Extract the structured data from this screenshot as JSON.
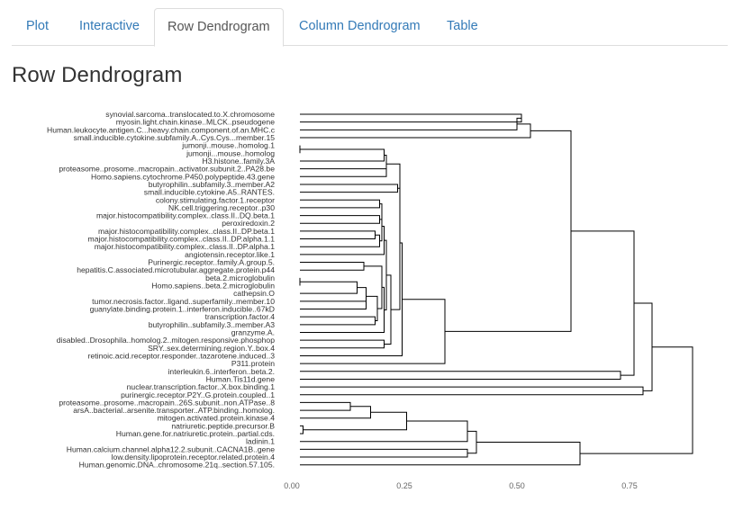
{
  "tabs": [
    {
      "label": "Plot",
      "active": false
    },
    {
      "label": "Interactive",
      "active": false
    },
    {
      "label": "Row Dendrogram",
      "active": true
    },
    {
      "label": "Column Dendrogram",
      "active": false
    },
    {
      "label": "Table",
      "active": false
    }
  ],
  "page_title": "Row Dendrogram",
  "colors": {
    "link": "#337ab7",
    "line": "#000000",
    "text": "#333333"
  },
  "chart_data": {
    "type": "dendrogram",
    "orientation": "horizontal",
    "labels": [
      "synovial.sarcoma..translocated.to.X.chromosome",
      "myosin.light.chain.kinase..MLCK..pseudogene",
      "Human.leukocyte.antigen.C...heavy.chain.component.of.an.MHC.c",
      "small.inducible.cytokine.subfamily.A..Cys.Cys...member.15",
      "jumonji..mouse..homolog.1",
      "jumonji...mouse..homolog",
      "H3.histone..family.3A",
      "proteasome..prosome..macropain..activator.subunit.2..PA28.be",
      "Homo.sapiens.cytochrome.P450.polypeptide.43.gene",
      "butyrophilin..subfamily.3..member.A2",
      "small.inducible.cytokine.A5..RANTES.",
      "colony.stimulating.factor.1.receptor",
      "NK.cell.triggering.receptor..p30",
      "major.histocompatibility.complex..class.II..DQ.beta.1",
      "peroxiredoxin.2",
      "major.histocompatibility.complex..class.II..DP.beta.1",
      "major.histocompatibility.complex..class.II..DP.alpha.1.1",
      "major.histocompatibility.complex..class.II..DP.alpha.1",
      "angiotensin.receptor.like.1",
      "Purinergic.receptor..family.A.group.5.",
      "hepatitis.C.associated.microtubular.aggregate.protein.p44",
      "beta.2.microglobulin",
      "Homo.sapiens..beta.2.microglobulin",
      "cathepsin.O",
      "tumor.necrosis.factor..ligand..superfamily..member.10",
      "guanylate.binding.protein.1..interferon.inducible..67kD",
      "transcription.factor.4",
      "butyrophilin..subfamily.3..member.A3",
      "granzyme.A.",
      "disabled..Drosophila..homolog.2..mitogen.responsive.phosphop",
      "SRY..sex.determining.region.Y..box.4",
      "retinoic.acid.receptor.responder..tazarotene.induced..3",
      "P311.protein",
      "interleukin.6..interferon..beta.2.",
      "Human.Tis11d.gene",
      "nuclear.transcription.factor..X.box.binding.1",
      "purinergic.receptor.P2Y..G.protein.coupled..1",
      "proteasome..prosome..macropain..26S.subunit..non.ATPase..8",
      "arsA..bacterial..arsenite.transporter..ATP.binding..homolog.",
      "mitogen.activated.protein.kinase.4",
      "natriuretic.peptide.precursor.B",
      "Human.gene.for.natriuretic.protein..partial.cds.",
      "ladinin.1",
      "Human.calcium.channel.alpha12.2.subunit..CACNA1B..gene",
      "low.density.lipoprotein.receptor.related.protein.4",
      "Human.genomic.DNA..chromosome.21q..section.57.105."
    ],
    "merges": [
      {
        "a": 0,
        "b": 1,
        "h": 0.51
      },
      {
        "a": 2,
        "b": "m0",
        "h": 0.5
      },
      {
        "a": 3,
        "b": "m1",
        "h": 0.53
      },
      {
        "a": 4,
        "b": 5,
        "h": 0.001
      },
      {
        "a": "m3",
        "b": 6,
        "h": 0.205
      },
      {
        "a": 7,
        "b": 8,
        "h": 0.21
      },
      {
        "a": "m4",
        "b": "m5",
        "h": 0.21
      },
      {
        "a": 9,
        "b": 10,
        "h": 0.235
      },
      {
        "a": "m6",
        "b": "m7",
        "h": 0.24
      },
      {
        "a": 11,
        "b": 12,
        "h": 0.195
      },
      {
        "a": 13,
        "b": 14,
        "h": 0.195
      },
      {
        "a": "m9",
        "b": "m10",
        "h": 0.2
      },
      {
        "a": 15,
        "b": 16,
        "h": 0.185
      },
      {
        "a": "m12",
        "b": 17,
        "h": 0.195
      },
      {
        "a": "m11",
        "b": "m13",
        "h": 0.2
      },
      {
        "a": 18,
        "b": "m14",
        "h": 0.205
      },
      {
        "a": 19,
        "b": 20,
        "h": 0.16
      },
      {
        "a": 21,
        "b": 22,
        "h": 0.001
      },
      {
        "a": "m17",
        "b": 23,
        "h": 0.145
      },
      {
        "a": 24,
        "b": 25,
        "h": 0.165
      },
      {
        "a": "m18",
        "b": "m19",
        "h": 0.165
      },
      {
        "a": 26,
        "b": 27,
        "h": 0.185
      },
      {
        "a": "m20",
        "b": "m21",
        "h": 0.19
      },
      {
        "a": "m16",
        "b": "m22",
        "h": 0.2
      },
      {
        "a": 28,
        "b": "m23",
        "h": 0.205
      },
      {
        "a": "m15",
        "b": "m24",
        "h": 0.21
      },
      {
        "a": 29,
        "b": 30,
        "h": 0.205
      },
      {
        "a": "m25",
        "b": "m26",
        "h": 0.22
      },
      {
        "a": "m8",
        "b": "m27",
        "h": 0.24
      },
      {
        "a": 31,
        "b": "m28",
        "h": 0.245
      },
      {
        "a": 32,
        "b": "m29",
        "h": 0.34
      },
      {
        "a": "m2",
        "b": "m30",
        "h": 0.62
      },
      {
        "a": 33,
        "b": 34,
        "h": 0.73
      },
      {
        "a": "m31",
        "b": "m32",
        "h": 0.76
      },
      {
        "a": 35,
        "b": 36,
        "h": 0.78
      },
      {
        "a": "m33",
        "b": "m34",
        "h": 0.8
      },
      {
        "a": 37,
        "b": 38,
        "h": 0.13
      },
      {
        "a": "m36",
        "b": 39,
        "h": 0.175
      },
      {
        "a": 40,
        "b": 41,
        "h": 0.025
      },
      {
        "a": "m37",
        "b": "m38",
        "h": 0.255
      },
      {
        "a": 42,
        "b": "m39",
        "h": 0.39
      },
      {
        "a": 43,
        "b": 44,
        "h": 0.39
      },
      {
        "a": "m40",
        "b": "m41",
        "h": 0.41
      },
      {
        "a": 45,
        "b": "m42",
        "h": 0.64
      },
      {
        "a": "m35",
        "b": "m43",
        "h": 0.89
      }
    ],
    "x_ticks": [
      "0.00",
      "0.25",
      "0.50",
      "0.75"
    ],
    "x_tick_values": [
      0,
      0.25,
      0.5,
      0.75
    ],
    "xlim": [
      0,
      0.9
    ],
    "xlabel": "",
    "ylabel": ""
  }
}
